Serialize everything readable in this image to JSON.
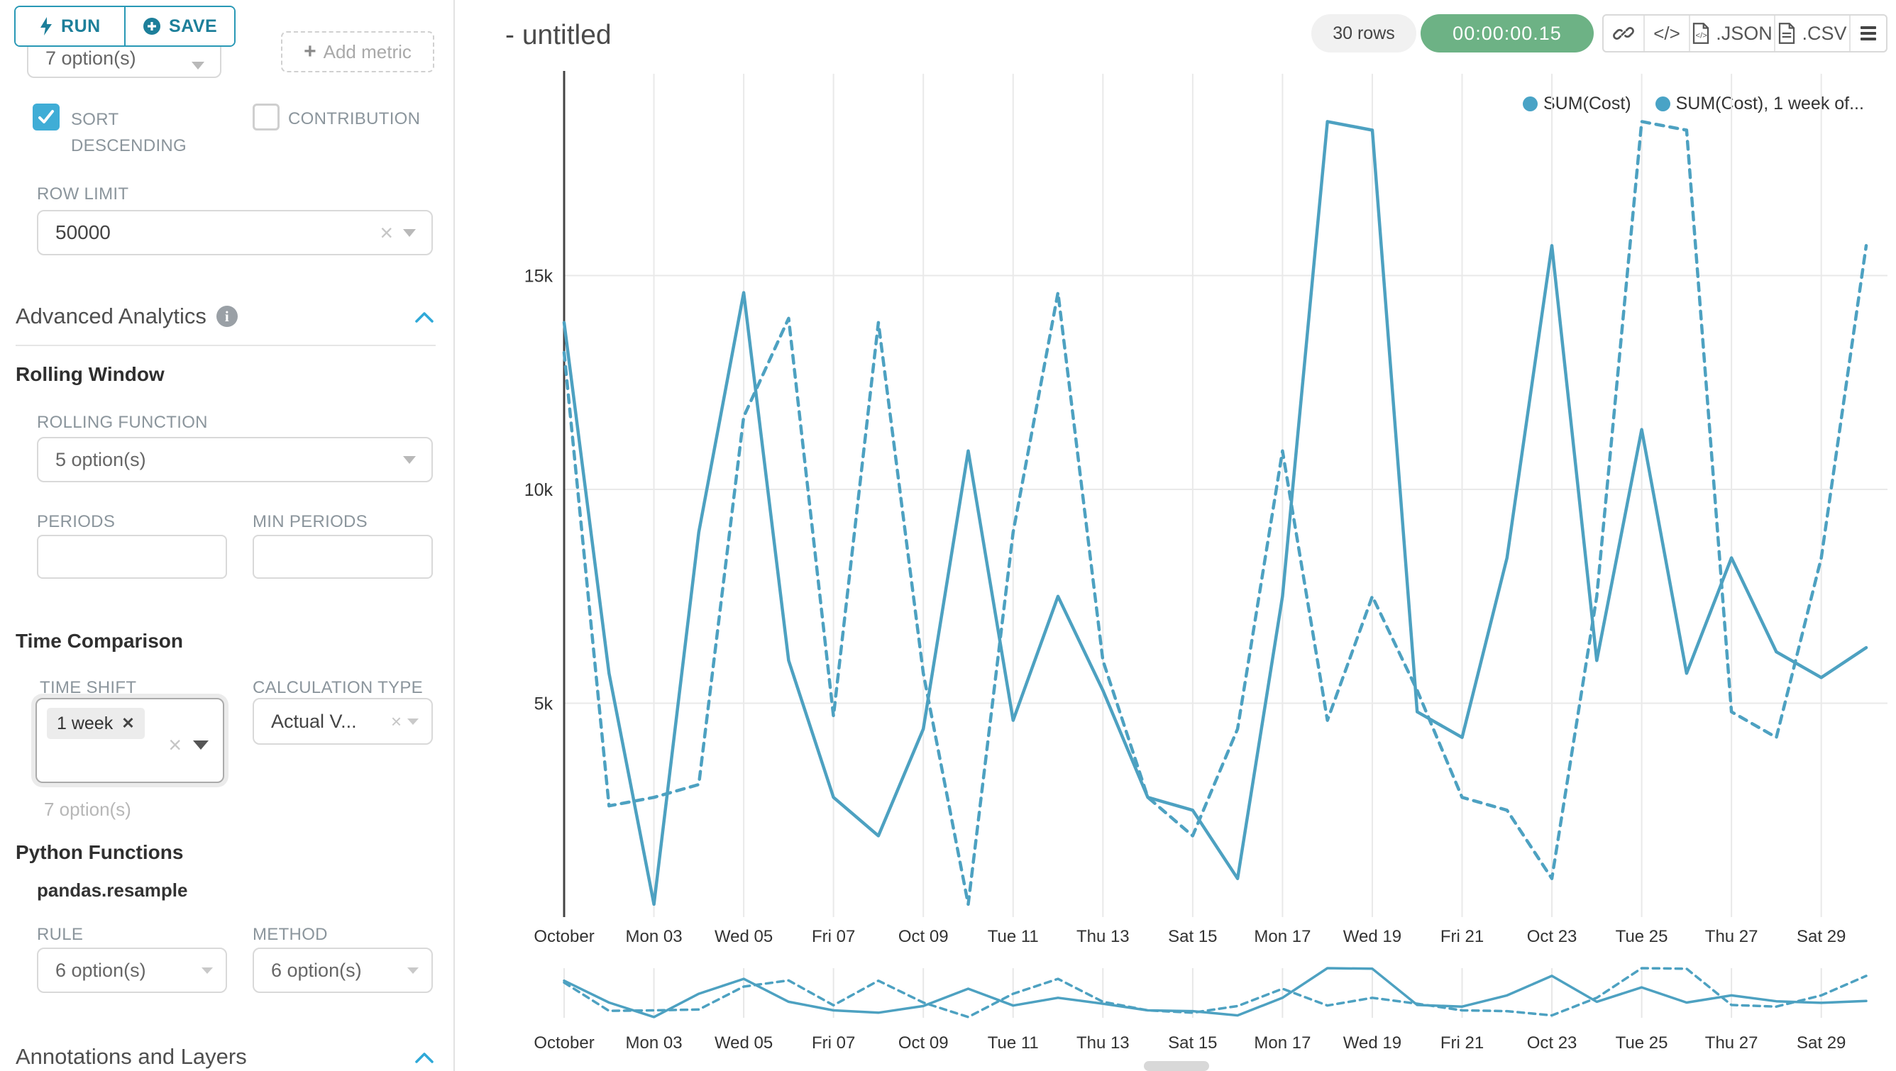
{
  "sidebar": {
    "run_label": "RUN",
    "save_label": "SAVE",
    "groupby_value": "7 option(s)",
    "add_metric_label": "Add metric",
    "sort_descending_label": "SORT DESCENDING",
    "contribution_label": "CONTRIBUTION",
    "row_limit": {
      "label": "ROW LIMIT",
      "value": "50000"
    },
    "advanced_analytics_title": "Advanced Analytics",
    "rolling_window": {
      "title": "Rolling Window",
      "rolling_function_label": "ROLLING FUNCTION",
      "rolling_function_value": "5 option(s)",
      "periods_label": "PERIODS",
      "min_periods_label": "MIN PERIODS"
    },
    "time_comparison": {
      "title": "Time Comparison",
      "time_shift_label": "TIME SHIFT",
      "time_shift_tag": "1 week",
      "time_shift_helper": "7 option(s)",
      "calculation_type_label": "CALCULATION TYPE",
      "calculation_type_value": "Actual V..."
    },
    "python_functions": {
      "title": "Python Functions",
      "subtitle": "pandas.resample",
      "rule_label": "RULE",
      "rule_value": "6 option(s)",
      "method_label": "METHOD",
      "method_value": "6 option(s)"
    },
    "annotations_title": "Annotations and Layers"
  },
  "header": {
    "title": "- untitled",
    "rows_badge": "30 rows",
    "timer_badge": "00:00:00.15",
    "timer_color": "#6db285",
    "export_json_label": ".JSON",
    "export_csv_label": ".CSV"
  },
  "chart_data": {
    "type": "line",
    "title": "- untitled",
    "legend": [
      "SUM(Cost)",
      "SUM(Cost), 1 week of..."
    ],
    "legend_position": "top-right",
    "grid": true,
    "line_color": "#4da1c1",
    "x_tick_labels": [
      "October",
      "Mon 03",
      "Wed 05",
      "Fri 07",
      "Oct 09",
      "Tue 11",
      "Thu 13",
      "Sat 15",
      "Mon 17",
      "Wed 19",
      "Fri 21",
      "Oct 23",
      "Tue 25",
      "Thu 27",
      "Sat 29"
    ],
    "y_tick_labels": [
      "5k",
      "10k",
      "15k"
    ],
    "y_tick_values": [
      5000,
      10000,
      15000
    ],
    "ylim": [
      0,
      20000
    ],
    "n_points": 30,
    "x_range_days": [
      "Oct 01",
      "Oct 30"
    ],
    "series": [
      {
        "name": "SUM(Cost)",
        "line_style": "solid",
        "values": [
          13900,
          5700,
          300,
          9000,
          14600,
          6000,
          2800,
          1900,
          4400,
          10900,
          4600,
          7500,
          5300,
          2800,
          2500,
          900,
          7500,
          18600,
          18400,
          4800,
          4200,
          8400,
          15700,
          6000,
          11400,
          5700,
          8400,
          6200,
          5600,
          6300
        ]
      },
      {
        "name": "SUM(Cost), 1 week of...",
        "line_style": "dashed",
        "values": [
          13200,
          2600,
          2800,
          3100,
          11700,
          14000,
          4700,
          13900,
          5700,
          300,
          9000,
          14600,
          6000,
          2800,
          1900,
          4400,
          10900,
          4600,
          7500,
          5300,
          2800,
          2500,
          900,
          7500,
          18600,
          18400,
          4800,
          4200,
          8400,
          15700
        ]
      }
    ],
    "has_mini_preview": true
  }
}
